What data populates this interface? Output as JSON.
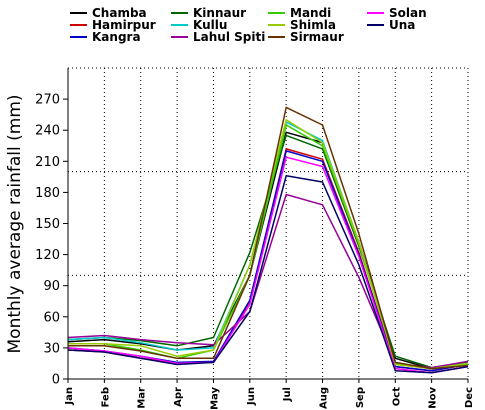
{
  "chart_data": {
    "type": "line",
    "title": "",
    "xlabel": "",
    "ylabel": "Monthly average rainfall (mm)",
    "categories": [
      "Jan",
      "Feb",
      "Mar",
      "Apr",
      "May",
      "Jun",
      "Jul",
      "Aug",
      "Sep",
      "Oct",
      "Nov",
      "Dec"
    ],
    "y_ticks": [
      0,
      30,
      60,
      90,
      120,
      150,
      180,
      210,
      240,
      270
    ],
    "ylim": [
      0,
      300
    ],
    "grid": "dotted",
    "legend_position": "top",
    "series": [
      {
        "name": "Chamba",
        "color": "#000000",
        "values": [
          36,
          38,
          34,
          28,
          32,
          100,
          238,
          228,
          132,
          20,
          10,
          15
        ]
      },
      {
        "name": "Hamirpur",
        "color": "#cc0000",
        "values": [
          28,
          26,
          20,
          15,
          16,
          75,
          222,
          212,
          122,
          12,
          8,
          14
        ]
      },
      {
        "name": "Kangra",
        "color": "#0000cc",
        "values": [
          30,
          27,
          22,
          16,
          17,
          76,
          220,
          210,
          120,
          12,
          8,
          14
        ]
      },
      {
        "name": "Kinnaur",
        "color": "#006600",
        "values": [
          38,
          40,
          37,
          32,
          40,
          122,
          235,
          222,
          128,
          22,
          11,
          16
        ]
      },
      {
        "name": "Kullu",
        "color": "#00cccc",
        "values": [
          38,
          40,
          35,
          28,
          30,
          110,
          248,
          230,
          132,
          15,
          10,
          15
        ]
      },
      {
        "name": "Lahul Spiti",
        "color": "#990099",
        "values": [
          40,
          42,
          38,
          35,
          33,
          65,
          178,
          168,
          98,
          15,
          11,
          17
        ]
      },
      {
        "name": "Mandi",
        "color": "#33cc00",
        "values": [
          34,
          34,
          28,
          20,
          28,
          100,
          245,
          225,
          130,
          15,
          10,
          14
        ]
      },
      {
        "name": "Shimla",
        "color": "#99cc00",
        "values": [
          34,
          34,
          32,
          22,
          28,
          110,
          250,
          228,
          132,
          14,
          10,
          15
        ]
      },
      {
        "name": "Sirmaur",
        "color": "#663300",
        "values": [
          32,
          32,
          27,
          20,
          20,
          100,
          262,
          245,
          140,
          16,
          10,
          13
        ]
      },
      {
        "name": "Solan",
        "color": "#ff00ff",
        "values": [
          30,
          27,
          22,
          15,
          16,
          72,
          214,
          205,
          118,
          10,
          6,
          12
        ]
      },
      {
        "name": "Una",
        "color": "#000066",
        "values": [
          28,
          26,
          20,
          14,
          16,
          65,
          196,
          190,
          110,
          8,
          6,
          12
        ]
      }
    ]
  }
}
